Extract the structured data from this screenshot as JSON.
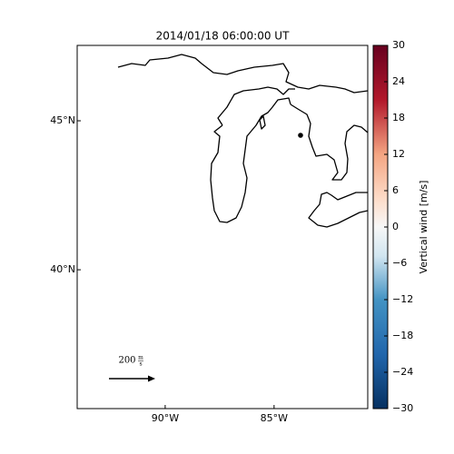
{
  "chart_data": {
    "type": "map",
    "title": "2014/01/18 06:00:00 UT",
    "xlim": [
      -94.04,
      -80.7
    ],
    "xticks": [
      {
        "value": -90,
        "label": "90°W"
      },
      {
        "value": -85,
        "label": "85°W"
      }
    ],
    "ylim": [
      35.34,
      47.53
    ],
    "yticks": [
      {
        "value": 40,
        "label": "40°N"
      },
      {
        "value": 45,
        "label": "45°N"
      }
    ],
    "colorbar": {
      "label": "Vertical wind [m/s]",
      "lim": [
        -30,
        30
      ],
      "ticks": [
        {
          "value": -30,
          "label": "−30"
        },
        {
          "value": -24,
          "label": "−24"
        },
        {
          "value": -18,
          "label": "−18"
        },
        {
          "value": -12,
          "label": "−12"
        },
        {
          "value": -6,
          "label": "−6"
        },
        0,
        6,
        12,
        18,
        24,
        30
      ]
    },
    "arrow_key": {
      "magnitude": 200,
      "unit_num": "m",
      "unit_den": "s"
    }
  }
}
